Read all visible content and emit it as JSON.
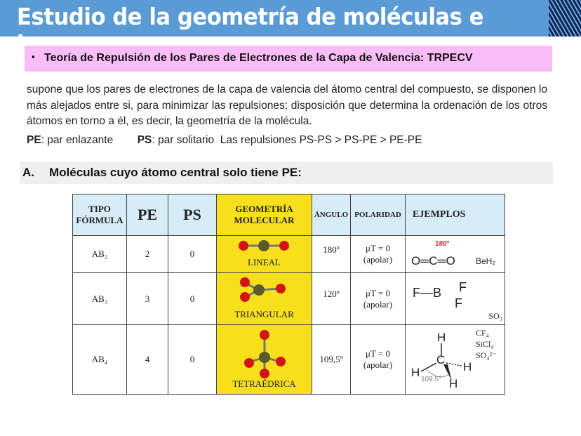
{
  "header": {
    "title": "Estudio de la geometría de moléculas e iones"
  },
  "theory": {
    "bullet": "▪",
    "text": "Teoría de Repulsión de los Pares de Electrones de la Capa de Valencia: TRPECV"
  },
  "paragraph": "supone que los pares de electrones de la capa de valencia del átomo central del compuesto, se disponen lo más alejados entre si, para minimizar las repulsiones; disposición que determina la ordenación de los otros átomos en torno a él, es decir, la geometría de la molécula.",
  "legend": {
    "pe_abbr": "PE",
    "pe_text": ": par enlazante",
    "ps_abbr": "PS",
    "ps_text": ": par solitario  Las repulsiones PS-PS > PS-PE > PE-PE"
  },
  "section_a": {
    "letter": "A.",
    "title": "Moléculas cuyo átomo central solo tiene PE:"
  },
  "table": {
    "headers": {
      "tipo1": "TIPO",
      "tipo2": "FÓRMULA",
      "pe": "PE",
      "ps": "PS",
      "geo1": "GEOMETRÍA",
      "geo2": "MOLECULAR",
      "angulo": "ÁNGULO",
      "polaridad": "POLARIDAD",
      "ejemplos": "EJEMPLOS"
    },
    "rows": [
      {
        "tipo": "AB₂",
        "pe": "2",
        "ps": "0",
        "geometria": "LINEAL",
        "angulo": "180º",
        "polar1": "μT = 0",
        "polar2": "(apolar)",
        "ej_angle": "180°",
        "ej_struct": "O═C═O",
        "ej_extra": "BeH₂"
      },
      {
        "tipo": "AB₃",
        "pe": "3",
        "ps": "0",
        "geometria": "TRIANGULAR",
        "angulo": "120º",
        "polar1": "μT = 0",
        "polar2": "(apolar)",
        "ej_struct": "F—B",
        "ej_f1": "F",
        "ej_f2": "F",
        "ej_extra": "SO₃"
      },
      {
        "tipo": "AB₄",
        "pe": "4",
        "ps": "0",
        "geometria": "TETRAÉDRICA",
        "angulo": "109,5º",
        "polar1": "μT = 0",
        "polar2": "(apolar)",
        "ej_h": "H",
        "ej_c": "C",
        "ej_angle": "109.5°",
        "ej_extra1": "CF₄",
        "ej_extra2": "SiCl₄",
        "ej_extra3": "SO₄²⁻"
      }
    ]
  },
  "colors": {
    "header": "#5b9bd5",
    "pink": "#fbbdf8",
    "table_header": "#d6ecf7",
    "geometry": "#f6e01c",
    "atom_outer": "#d41414",
    "atom_center": "#5a5a2a"
  }
}
